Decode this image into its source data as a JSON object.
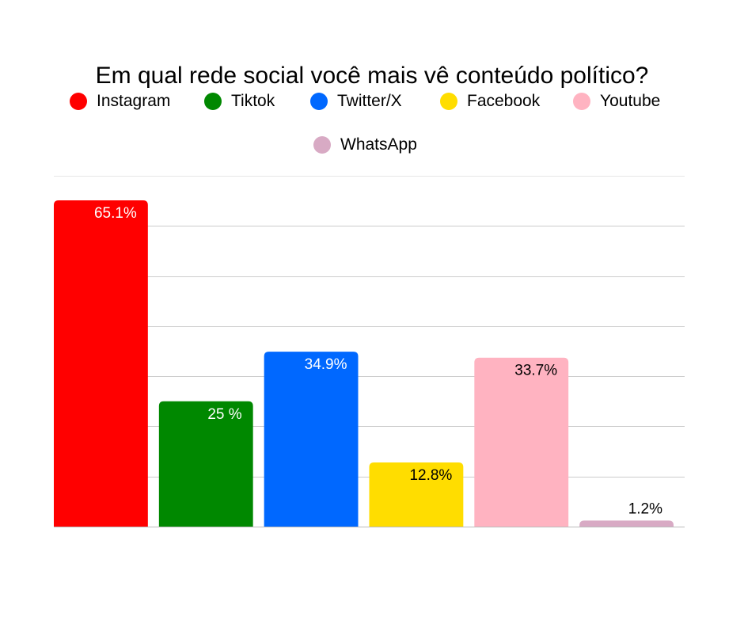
{
  "chart_data": {
    "type": "bar",
    "title": "Em qual rede social você mais vê conteúdo político?",
    "categories": [
      "Instagram",
      "Tiktok",
      "Twitter/X",
      "Facebook",
      "Youtube",
      "WhatsApp"
    ],
    "values": [
      65.1,
      25,
      34.9,
      12.8,
      33.7,
      1.2
    ],
    "data_labels": [
      "65.1%",
      "25 %",
      "34.9%",
      "12.8%",
      "33.7%",
      "1.2%"
    ],
    "colors": [
      "#ff0000",
      "#008800",
      "#0068ff",
      "#ffdd00",
      "#ffb3c1",
      "#d8aac4"
    ],
    "label_colors": [
      "#ffffff",
      "#ffffff",
      "#ffffff",
      "#000000",
      "#000000",
      "#000000"
    ],
    "xlabel": "",
    "ylabel": "",
    "ylim": [
      0,
      70
    ],
    "grid": true,
    "legend_position": "top",
    "gridline_color": "#cccccc"
  }
}
